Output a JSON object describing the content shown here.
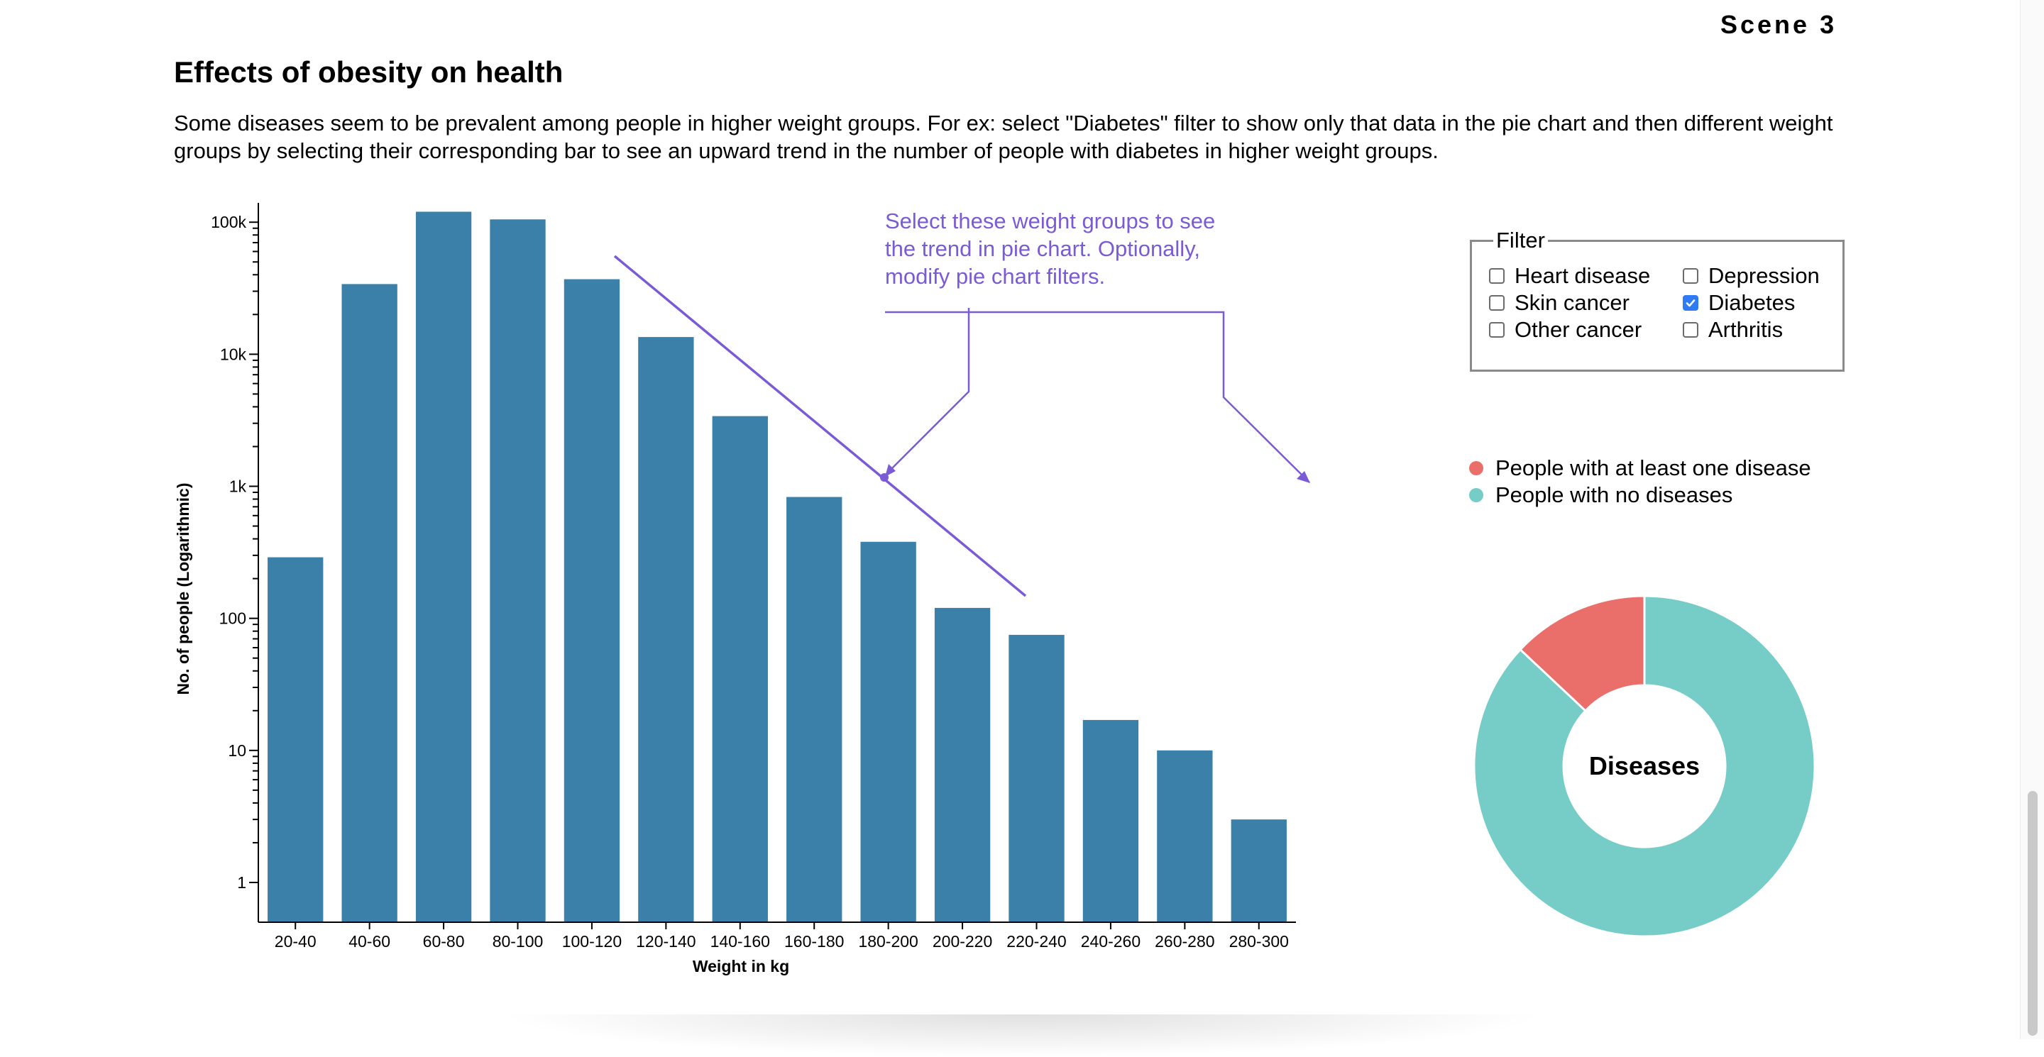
{
  "scene_label": "Scene 3",
  "title": "Effects of obesity on health",
  "description": "Some diseases seem to be prevalent among people in higher weight groups. For ex: select \"Diabetes\" filter to show only that data in the pie chart and then different weight groups by selecting their corresponding bar to see an upward trend in the number of people with diabetes in higher weight groups.",
  "annotation": {
    "lines": [
      "Select these weight groups to see",
      "the trend in pie chart. Optionally,",
      "modify pie chart filters."
    ],
    "color": "#7b5ad6"
  },
  "filter": {
    "legend": "Filter",
    "options": [
      {
        "label": "Heart disease",
        "checked": false
      },
      {
        "label": "Depression",
        "checked": false
      },
      {
        "label": "Skin cancer",
        "checked": false
      },
      {
        "label": "Diabetes",
        "checked": true
      },
      {
        "label": "Other cancer",
        "checked": false
      },
      {
        "label": "Arthritis",
        "checked": false
      }
    ]
  },
  "pie_legend": [
    {
      "label": "People with at least one disease",
      "color": "#ea6f6b"
    },
    {
      "label": "People with no diseases",
      "color": "#76ccc7"
    }
  ],
  "chart_data": [
    {
      "type": "bar",
      "title": "",
      "xlabel": "Weight in kg",
      "ylabel": "No. of people (Logarithmic)",
      "yscale": "log",
      "ylim": [
        0.5,
        130000
      ],
      "yticks": [
        1,
        10,
        100,
        1000,
        10000,
        100000
      ],
      "ytick_labels": [
        "1",
        "10",
        "100",
        "1k",
        "10k",
        "100k"
      ],
      "categories": [
        "20-40",
        "40-60",
        "60-80",
        "80-100",
        "100-120",
        "120-140",
        "140-160",
        "160-180",
        "180-200",
        "200-220",
        "220-240",
        "240-260",
        "260-280",
        "280-300"
      ],
      "values": [
        290,
        34000,
        120000,
        105000,
        37000,
        13500,
        3400,
        830,
        380,
        120,
        75,
        17,
        10,
        3
      ],
      "bar_color": "#3a80a8"
    },
    {
      "type": "pie",
      "title": "Diseases",
      "labels": [
        "People with at least one disease",
        "People with no diseases"
      ],
      "values": [
        13,
        87
      ],
      "colors": [
        "#ea6f6b",
        "#76ccc7"
      ],
      "donut": true
    }
  ]
}
